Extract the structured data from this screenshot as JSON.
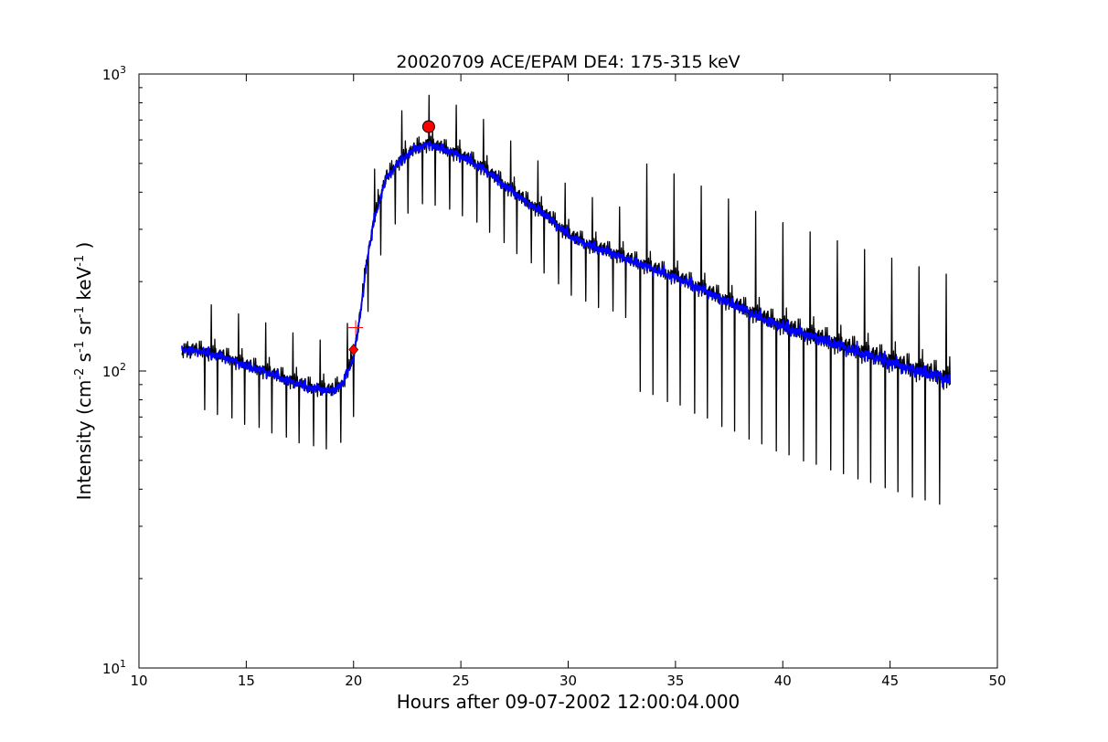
{
  "chart_data": {
    "type": "line",
    "title": "20020709 ACE/EPAM DE4: 175-315 keV",
    "xlabel": "Hours after 09-07-2002 12:00:04.000",
    "ylabel": "Intensity (cm",
    "ylabel_parts": [
      "-2",
      " s",
      "-1",
      " sr",
      "-1",
      " keV",
      "-1",
      " )"
    ],
    "xlim": [
      10,
      50
    ],
    "ylim": [
      10,
      1000
    ],
    "yscale": "log",
    "grid": false,
    "x_tick_labels": [
      "10",
      "15",
      "20",
      "25",
      "30",
      "35",
      "40",
      "45",
      "50"
    ],
    "x_ticks": [
      10,
      15,
      20,
      25,
      30,
      35,
      40,
      45,
      50
    ],
    "y_tick_labels": [
      {
        "base": "10",
        "exp": "1",
        "value": 10
      },
      {
        "base": "10",
        "exp": "2",
        "value": 100
      },
      {
        "base": "10",
        "exp": "3",
        "value": 1000
      }
    ],
    "series": [
      {
        "style": "raw-black",
        "color": "#000000",
        "x": [
          12.0,
          13.0,
          14.0,
          15.0,
          16.0,
          17.0,
          18.0,
          19.0,
          19.5,
          20.0,
          20.3,
          20.6,
          21.0,
          21.5,
          22.0,
          22.5,
          23.0,
          23.5,
          24.0,
          25.0,
          26.0,
          27.0,
          28.0,
          29.0,
          30.0,
          31.0,
          32.0,
          33.0,
          34.0,
          35.0,
          36.0,
          37.0,
          38.0,
          39.0,
          40.0,
          41.0,
          42.0,
          43.0,
          44.0,
          45.0,
          46.0,
          47.0,
          47.8
        ],
        "y": [
          118,
          115,
          110,
          103,
          98,
          92,
          87,
          85,
          90,
          110,
          150,
          230,
          330,
          440,
          490,
          530,
          560,
          575,
          560,
          525,
          480,
          420,
          370,
          330,
          285,
          262,
          248,
          232,
          218,
          205,
          190,
          175,
          162,
          150,
          140,
          132,
          125,
          118,
          112,
          106,
          100,
          96,
          92
        ]
      },
      {
        "style": "smoothed-blue",
        "color": "#0000ff",
        "x": [
          12.0,
          13.0,
          14.0,
          15.0,
          16.0,
          17.0,
          18.0,
          19.0,
          19.5,
          20.0,
          20.3,
          20.6,
          21.0,
          21.5,
          22.0,
          22.5,
          23.0,
          23.5,
          24.0,
          25.0,
          26.0,
          27.0,
          28.0,
          29.0,
          30.0,
          31.0,
          32.0,
          33.0,
          34.0,
          35.0,
          36.0,
          37.0,
          38.0,
          39.0,
          40.0,
          41.0,
          42.0,
          43.0,
          44.0,
          45.0,
          46.0,
          47.0,
          47.8
        ],
        "y": [
          118,
          115,
          110,
          103,
          98,
          92,
          87,
          85,
          90,
          110,
          150,
          230,
          330,
          440,
          490,
          530,
          560,
          575,
          560,
          525,
          480,
          420,
          370,
          330,
          285,
          262,
          248,
          232,
          218,
          205,
          190,
          175,
          162,
          150,
          140,
          132,
          125,
          118,
          112,
          106,
          100,
          96,
          92
        ]
      }
    ],
    "markers": [
      {
        "kind": "circle",
        "x": 23.5,
        "y": 665,
        "color": "#ff0000"
      },
      {
        "kind": "diamond",
        "x": 20.0,
        "y": 118,
        "color": "#ff0000"
      },
      {
        "kind": "plus",
        "x": 20.1,
        "y": 140,
        "color": "#ff0000"
      }
    ]
  }
}
